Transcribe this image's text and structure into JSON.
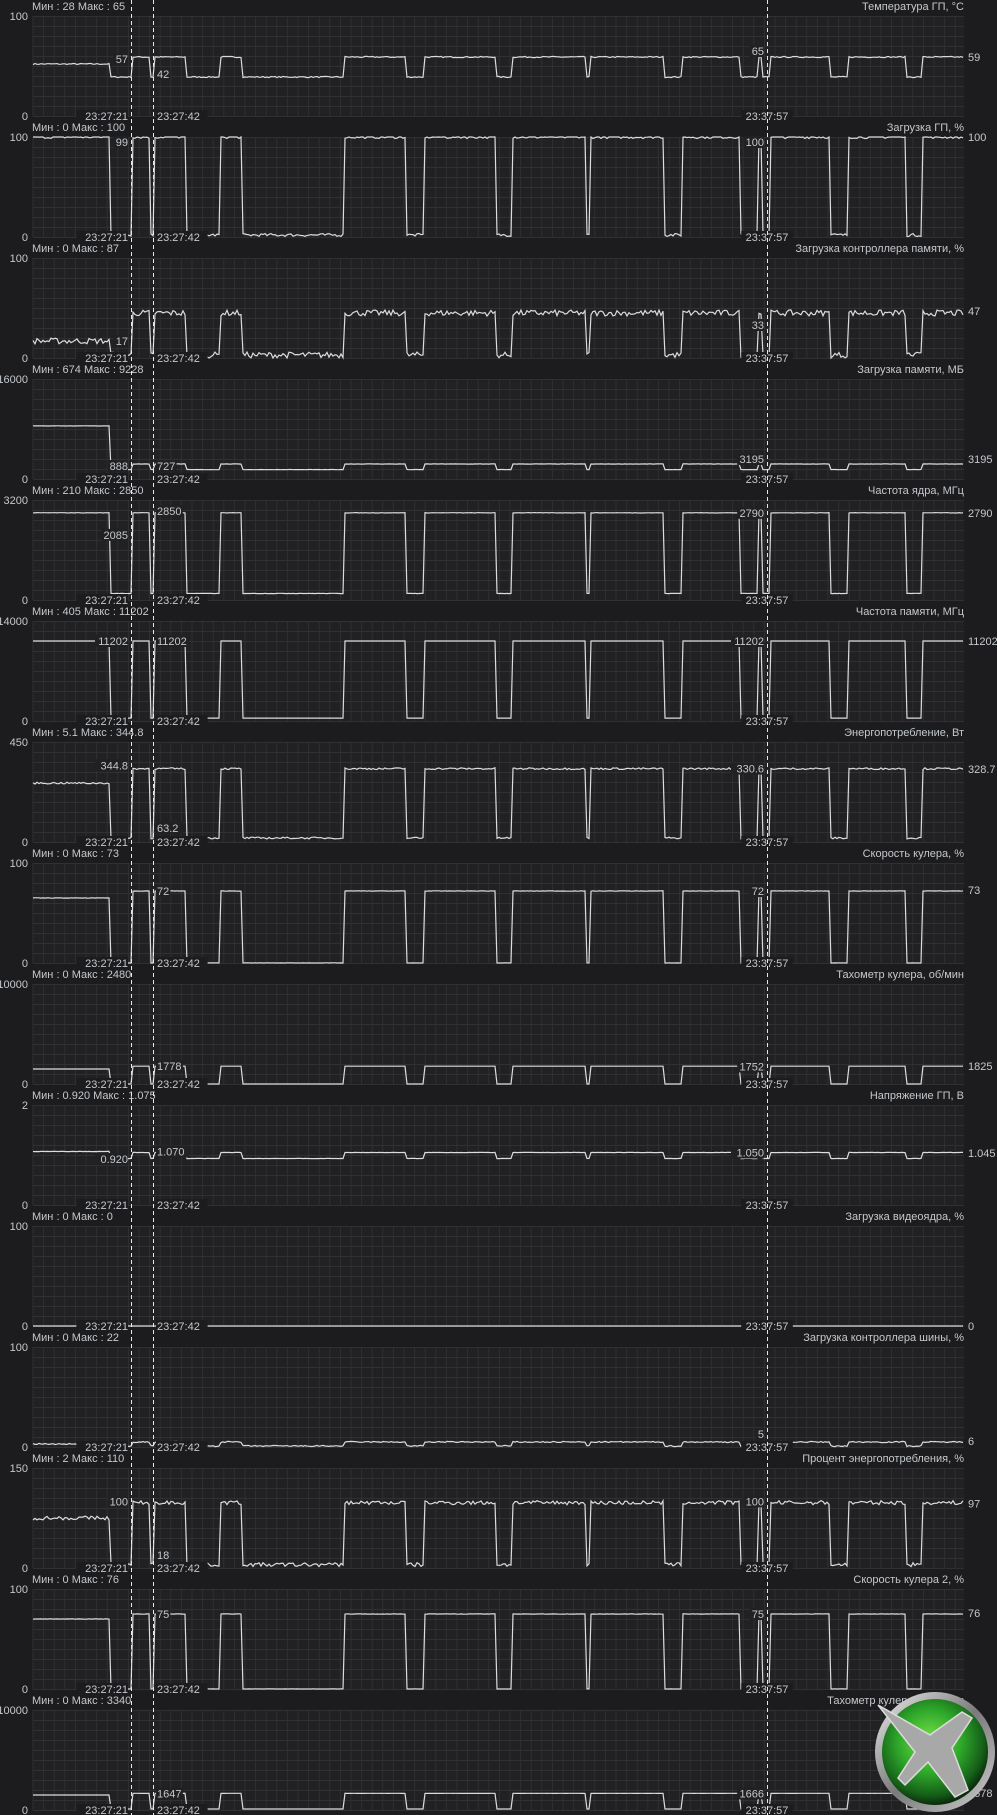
{
  "app": "hardware-monitor",
  "colors": {
    "background": "#1c1c1e",
    "plot": "#212123",
    "grid": "#303033",
    "line": "#dcdcdc",
    "text": "#c4c8cc"
  },
  "cursors": {
    "left_a_time": "23:27:21",
    "left_b_time": "23:27:42",
    "right_time": "23:37:57"
  },
  "labels": {
    "min": "Мин",
    "max": "Макс"
  },
  "logo": {
    "icon": "jet-plane-logo-icon"
  },
  "chart_data": [
    {
      "type": "line",
      "title": "Температура ГП, °C",
      "ylim": [
        0,
        100
      ],
      "min": "28",
      "max": "65",
      "current": "59",
      "cursor_values": [
        {
          "cursor": "a",
          "value": "57",
          "y": 57
        },
        {
          "cursor": "b",
          "value": "42",
          "y": 42
        },
        {
          "cursor": "c",
          "value": "65",
          "y": 65
        }
      ],
      "load_level": 59,
      "idle_level": 39,
      "start_level": 52,
      "noise": 0.6
    },
    {
      "type": "line",
      "title": "Загрузка ГП, %",
      "ylim": [
        0,
        100
      ],
      "min": "0",
      "max": "100",
      "current": "100",
      "cursor_values": [
        {
          "cursor": "a",
          "value": "99",
          "y": 99
        },
        {
          "cursor": "c",
          "value": "100",
          "y": 100
        }
      ],
      "load_level": 100,
      "idle_level": 2,
      "start_level": 100,
      "noise": 1.5
    },
    {
      "type": "line",
      "title": "Загрузка контроллера памяти, %",
      "ylim": [
        0,
        100
      ],
      "min": "0",
      "max": "87",
      "current": "47",
      "cursor_values": [
        {
          "cursor": "a",
          "value": "17",
          "y": 17
        },
        {
          "cursor": "c",
          "value": "33",
          "y": 33
        }
      ],
      "load_level": 45,
      "idle_level": 3,
      "start_level": 17,
      "noise": 3
    },
    {
      "type": "line",
      "title": "Загрузка памяти, МБ",
      "ylim": [
        0,
        16000
      ],
      "min": "674",
      "max": "9228",
      "current": "3195",
      "cursor_values": [
        {
          "cursor": "a",
          "value": "888",
          "y": 888
        },
        {
          "cursor": "b",
          "value": "727",
          "y": 727
        },
        {
          "cursor": "c",
          "value": "3195",
          "y": 3195
        }
      ],
      "load_level": 2400,
      "idle_level": 1500,
      "start_level": 8500,
      "noise": 20
    },
    {
      "type": "line",
      "title": "Частота ядра, МГц",
      "ylim": [
        0,
        3200
      ],
      "min": "210",
      "max": "2850",
      "current": "2790",
      "cursor_values": [
        {
          "cursor": "a",
          "value": "2085",
          "y": 2085
        },
        {
          "cursor": "b",
          "value": "2850",
          "y": 2850
        },
        {
          "cursor": "c",
          "value": "2790",
          "y": 2790
        }
      ],
      "load_level": 2790,
      "idle_level": 210,
      "start_level": 2790,
      "noise": 6
    },
    {
      "type": "line",
      "title": "Частота памяти, МГц",
      "ylim": [
        0,
        14000
      ],
      "min": "405",
      "max": "11202",
      "current": "11202",
      "cursor_values": [
        {
          "cursor": "a",
          "value": "11202",
          "y": 11202
        },
        {
          "cursor": "b",
          "value": "11202",
          "y": 11202
        },
        {
          "cursor": "c",
          "value": "11202",
          "y": 11202
        }
      ],
      "load_level": 11202,
      "idle_level": 405,
      "start_level": 11202,
      "noise": 0
    },
    {
      "type": "line",
      "title": "Энергопотребление, Вт",
      "ylim": [
        0,
        450
      ],
      "min": "5.1",
      "max": "344.8",
      "current": "328.7",
      "cursor_values": [
        {
          "cursor": "a",
          "value": "344.8",
          "y": 344.8
        },
        {
          "cursor": "b",
          "value": "63.2",
          "y": 63.2
        },
        {
          "cursor": "c",
          "value": "330.6",
          "y": 330.6
        }
      ],
      "load_level": 330,
      "idle_level": 18,
      "start_level": 265,
      "noise": 4
    },
    {
      "type": "line",
      "title": "Скорость кулера, %",
      "ylim": [
        0,
        100
      ],
      "min": "0",
      "max": "73",
      "current": "73",
      "cursor_values": [
        {
          "cursor": "b",
          "value": "72",
          "y": 72
        },
        {
          "cursor": "c",
          "value": "72",
          "y": 72
        }
      ],
      "load_level": 72,
      "idle_level": 0,
      "start_level": 65,
      "noise": 0.2
    },
    {
      "type": "line",
      "title": "Тахометр кулера, об/мин",
      "ylim": [
        0,
        10000
      ],
      "min": "0",
      "max": "2480",
      "current": "1825",
      "cursor_values": [
        {
          "cursor": "b",
          "value": "1778",
          "y": 1778
        },
        {
          "cursor": "c",
          "value": "1752",
          "y": 1752
        }
      ],
      "load_level": 1780,
      "idle_level": 0,
      "start_level": 1500,
      "noise": 5
    },
    {
      "type": "line",
      "title": "Напряжение ГП, В",
      "ylim": [
        0,
        2
      ],
      "min": "0.920",
      "max": "1.075",
      "current": "1.045",
      "cursor_values": [
        {
          "cursor": "a",
          "value": "0.920",
          "y": 0.92
        },
        {
          "cursor": "b",
          "value": "1.070",
          "y": 1.07
        },
        {
          "cursor": "c",
          "value": "1.050",
          "y": 1.05
        }
      ],
      "load_level": 1.05,
      "idle_level": 0.93,
      "start_level": 1.07,
      "noise": 0.003
    },
    {
      "type": "line",
      "title": "Загрузка видеоядра, %",
      "ylim": [
        0,
        100
      ],
      "min": "0",
      "max": "0",
      "current": "0",
      "cursor_values": [],
      "load_level": 0,
      "idle_level": 0,
      "start_level": 0,
      "noise": 0
    },
    {
      "type": "line",
      "title": "Загрузка контроллера шины, %",
      "ylim": [
        0,
        100
      ],
      "min": "0",
      "max": "22",
      "current": "6",
      "cursor_values": [
        {
          "cursor": "c",
          "value": "5",
          "y": 5
        }
      ],
      "load_level": 5,
      "idle_level": 1,
      "start_level": 3,
      "noise": 0.6
    },
    {
      "type": "line",
      "title": "Процент энергопотребления, %",
      "ylim": [
        0,
        150
      ],
      "min": "2",
      "max": "110",
      "current": "97",
      "cursor_values": [
        {
          "cursor": "a",
          "value": "100",
          "y": 100
        },
        {
          "cursor": "b",
          "value": "18",
          "y": 18
        },
        {
          "cursor": "c",
          "value": "100",
          "y": 100
        }
      ],
      "load_level": 98,
      "idle_level": 5,
      "start_level": 75,
      "noise": 3
    },
    {
      "type": "line",
      "title": "Скорость кулера 2, %",
      "ylim": [
        0,
        100
      ],
      "min": "0",
      "max": "76",
      "current": "76",
      "cursor_values": [
        {
          "cursor": "b",
          "value": "75",
          "y": 75
        },
        {
          "cursor": "c",
          "value": "75",
          "y": 75
        }
      ],
      "load_level": 75,
      "idle_level": 0,
      "start_level": 70,
      "noise": 0.2
    },
    {
      "type": "line",
      "title": "Тахометр кулера 2, об/мин",
      "ylim": [
        0,
        10000
      ],
      "min": "0",
      "max": "3340",
      "current": "1678",
      "cursor_values": [
        {
          "cursor": "b",
          "value": "1647",
          "y": 1647
        },
        {
          "cursor": "c",
          "value": "1666",
          "y": 1666
        }
      ],
      "load_level": 1666,
      "idle_level": 100,
      "start_level": 1500,
      "noise": 5
    }
  ]
}
